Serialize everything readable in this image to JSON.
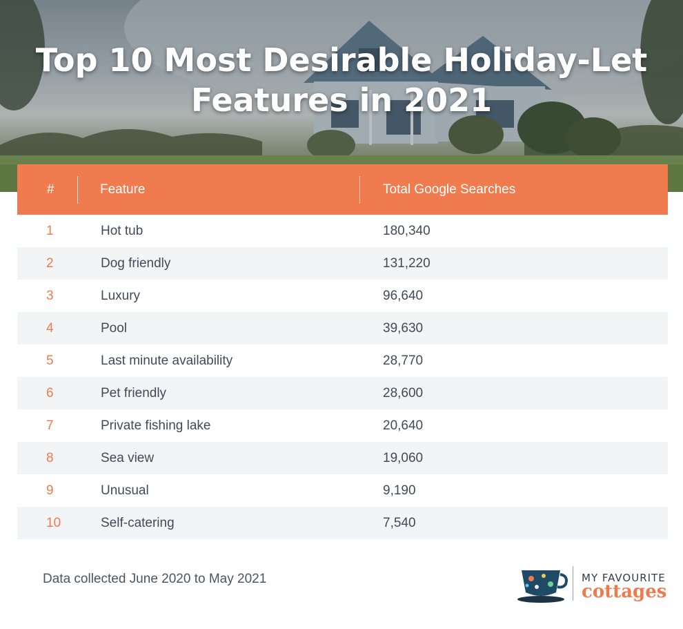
{
  "hero": {
    "title_line1": "Top 10 Most Desirable Holiday-Let",
    "title_line2": "Features in 2021"
  },
  "colors": {
    "accent": "#f07b4e",
    "rank_text": "#ee7b4f",
    "body_text": "#3f4b58",
    "alt_row": "#f3f4f5"
  },
  "chart_data": {
    "type": "table",
    "columns": [
      "#",
      "Feature",
      "Total Google Searches"
    ],
    "rows": [
      {
        "rank": "1",
        "feature": "Hot tub",
        "searches": "180,340"
      },
      {
        "rank": "2",
        "feature": "Dog friendly",
        "searches": "131,220"
      },
      {
        "rank": "3",
        "feature": "Luxury",
        "searches": "96,640"
      },
      {
        "rank": "4",
        "feature": "Pool",
        "searches": "39,630"
      },
      {
        "rank": "5",
        "feature": "Last minute availability",
        "searches": "28,770"
      },
      {
        "rank": "6",
        "feature": "Pet friendly",
        "searches": "28,600"
      },
      {
        "rank": "7",
        "feature": "Private fishing lake",
        "searches": "20,640"
      },
      {
        "rank": "8",
        "feature": "Sea view",
        "searches": "19,060"
      },
      {
        "rank": "9",
        "feature": "Unusual",
        "searches": "9,190"
      },
      {
        "rank": "10",
        "feature": "Self-catering",
        "searches": "7,540"
      }
    ]
  },
  "footer": {
    "note": "Data collected June 2020 to May 2021",
    "logo_line1": "MY FAVOURITE",
    "logo_line2": "cottages",
    "logo_icon": "teacup-icon"
  }
}
